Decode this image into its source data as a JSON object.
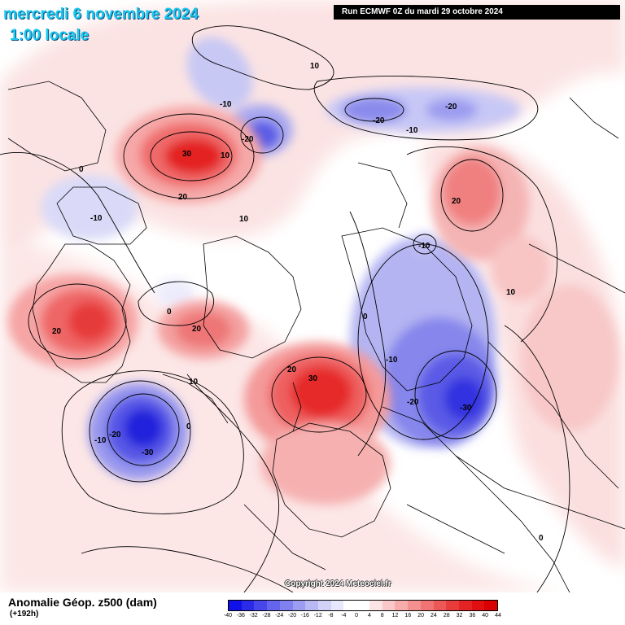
{
  "header": {
    "date": "mercredi 6 novembre 2024",
    "time": "1:00 locale",
    "run": "Run ECMWF 0Z du mardi 29 octobre 2024"
  },
  "copyright": "Copyright 2024 Meteociel.fr",
  "legend": {
    "title": "Anomalie Géop. z500 (dam)",
    "subtitle": "(+192h)",
    "ticks": [
      "-40",
      "-36",
      "-32",
      "-28",
      "-24",
      "-20",
      "-16",
      "-12",
      "-8",
      "-4",
      "0",
      "4",
      "8",
      "12",
      "16",
      "20",
      "24",
      "28",
      "32",
      "36",
      "40",
      "44"
    ],
    "colors": [
      "#1010e8",
      "#2a2ae8",
      "#4646ea",
      "#6464ec",
      "#8080ee",
      "#9c9cf0",
      "#b8b8f4",
      "#d2d2f8",
      "#e8e8fc",
      "#ffffff",
      "#ffffff",
      "#fde4e4",
      "#fac8c8",
      "#f7acac",
      "#f49090",
      "#f07474",
      "#ec5858",
      "#e83c3c",
      "#e42424",
      "#e01010",
      "#d80000"
    ]
  },
  "contour_labels": [
    {
      "text": "10",
      "value": 10
    },
    {
      "text": "-10",
      "value": -10
    },
    {
      "text": "-20",
      "value": -20
    },
    {
      "text": "-20",
      "value": -20
    },
    {
      "text": "-20",
      "value": -20
    },
    {
      "text": "-10",
      "value": -10
    },
    {
      "text": "30",
      "value": 30
    },
    {
      "text": "10",
      "value": 10
    },
    {
      "text": "20",
      "value": 20
    },
    {
      "text": "0",
      "value": 0
    },
    {
      "text": "-10",
      "value": -10
    },
    {
      "text": "10",
      "value": 10
    },
    {
      "text": "20",
      "value": 20
    },
    {
      "text": "-10",
      "value": -10
    },
    {
      "text": "10",
      "value": 10
    },
    {
      "text": "20",
      "value": 20
    },
    {
      "text": "0",
      "value": 0
    },
    {
      "text": "20",
      "value": 20
    },
    {
      "text": "0",
      "value": 0
    },
    {
      "text": "20",
      "value": 20
    },
    {
      "text": "30",
      "value": 30
    },
    {
      "text": "10",
      "value": 10
    },
    {
      "text": "-10",
      "value": -10
    },
    {
      "text": "-20",
      "value": -20
    },
    {
      "text": "-30",
      "value": -30
    },
    {
      "text": "-10",
      "value": -10
    },
    {
      "text": "-20",
      "value": -20
    },
    {
      "text": "-30",
      "value": -30
    },
    {
      "text": "0",
      "value": 0
    },
    {
      "text": "0",
      "value": 0
    }
  ]
}
